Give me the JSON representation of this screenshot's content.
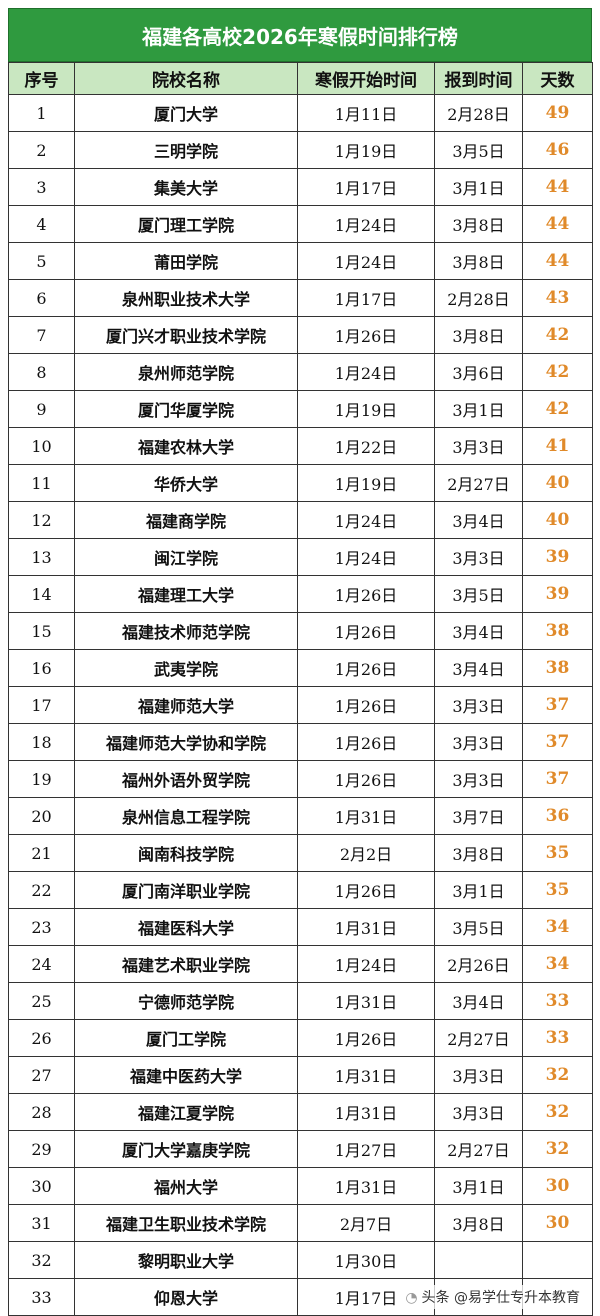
{
  "title": "福建各高校2026年寒假时间排行榜",
  "headers": [
    "序号",
    "院校名称",
    "寒假开始时间",
    "报到时间",
    "天数"
  ],
  "rows": [
    [
      "1",
      "厦门大学",
      "1月11日",
      "2月28日",
      "49"
    ],
    [
      "2",
      "三明学院",
      "1月19日",
      "3月5日",
      "46"
    ],
    [
      "3",
      "集美大学",
      "1月17日",
      "3月1日",
      "44"
    ],
    [
      "4",
      "厦门理工学院",
      "1月24日",
      "3月8日",
      "44"
    ],
    [
      "5",
      "莆田学院",
      "1月24日",
      "3月8日",
      "44"
    ],
    [
      "6",
      "泉州职业技术大学",
      "1月17日",
      "2月28日",
      "43"
    ],
    [
      "7",
      "厦门兴才职业技术学院",
      "1月26日",
      "3月8日",
      "42"
    ],
    [
      "8",
      "泉州师范学院",
      "1月24日",
      "3月6日",
      "42"
    ],
    [
      "9",
      "厦门华厦学院",
      "1月19日",
      "3月1日",
      "42"
    ],
    [
      "10",
      "福建农林大学",
      "1月22日",
      "3月3日",
      "41"
    ],
    [
      "11",
      "华侨大学",
      "1月19日",
      "2月27日",
      "40"
    ],
    [
      "12",
      "福建商学院",
      "1月24日",
      "3月4日",
      "40"
    ],
    [
      "13",
      "闽江学院",
      "1月24日",
      "3月3日",
      "39"
    ],
    [
      "14",
      "福建理工大学",
      "1月26日",
      "3月5日",
      "39"
    ],
    [
      "15",
      "福建技术师范学院",
      "1月26日",
      "3月4日",
      "38"
    ],
    [
      "16",
      "武夷学院",
      "1月26日",
      "3月4日",
      "38"
    ],
    [
      "17",
      "福建师范大学",
      "1月26日",
      "3月3日",
      "37"
    ],
    [
      "18",
      "福建师范大学协和学院",
      "1月26日",
      "3月3日",
      "37"
    ],
    [
      "19",
      "福州外语外贸学院",
      "1月26日",
      "3月3日",
      "37"
    ],
    [
      "20",
      "泉州信息工程学院",
      "1月31日",
      "3月7日",
      "36"
    ],
    [
      "21",
      "闽南科技学院",
      "2月2日",
      "3月8日",
      "35"
    ],
    [
      "22",
      "厦门南洋职业学院",
      "1月26日",
      "3月1日",
      "35"
    ],
    [
      "23",
      "福建医科大学",
      "1月31日",
      "3月5日",
      "34"
    ],
    [
      "24",
      "福建艺术职业学院",
      "1月24日",
      "2月26日",
      "34"
    ],
    [
      "25",
      "宁德师范学院",
      "1月31日",
      "3月4日",
      "33"
    ],
    [
      "26",
      "厦门工学院",
      "1月26日",
      "2月27日",
      "33"
    ],
    [
      "27",
      "福建中医药大学",
      "1月31日",
      "3月3日",
      "32"
    ],
    [
      "28",
      "福建江夏学院",
      "1月31日",
      "3月3日",
      "32"
    ],
    [
      "29",
      "厦门大学嘉庚学院",
      "1月27日",
      "2月27日",
      "32"
    ],
    [
      "30",
      "福州大学",
      "1月31日",
      "3月1日",
      "30"
    ],
    [
      "31",
      "福建卫生职业技术学院",
      "2月7日",
      "3月8日",
      "30"
    ],
    [
      "32",
      "黎明职业大学",
      "1月30日",
      "",
      ""
    ],
    [
      "33",
      "仰恩大学",
      "1月17日",
      "",
      ""
    ]
  ],
  "watermark": "头条 @易学仕专升本教育",
  "colors": {
    "title_bg": "#2f9a3f",
    "header_bg": "#c9e7c1",
    "days_text": "#e08a2a"
  }
}
